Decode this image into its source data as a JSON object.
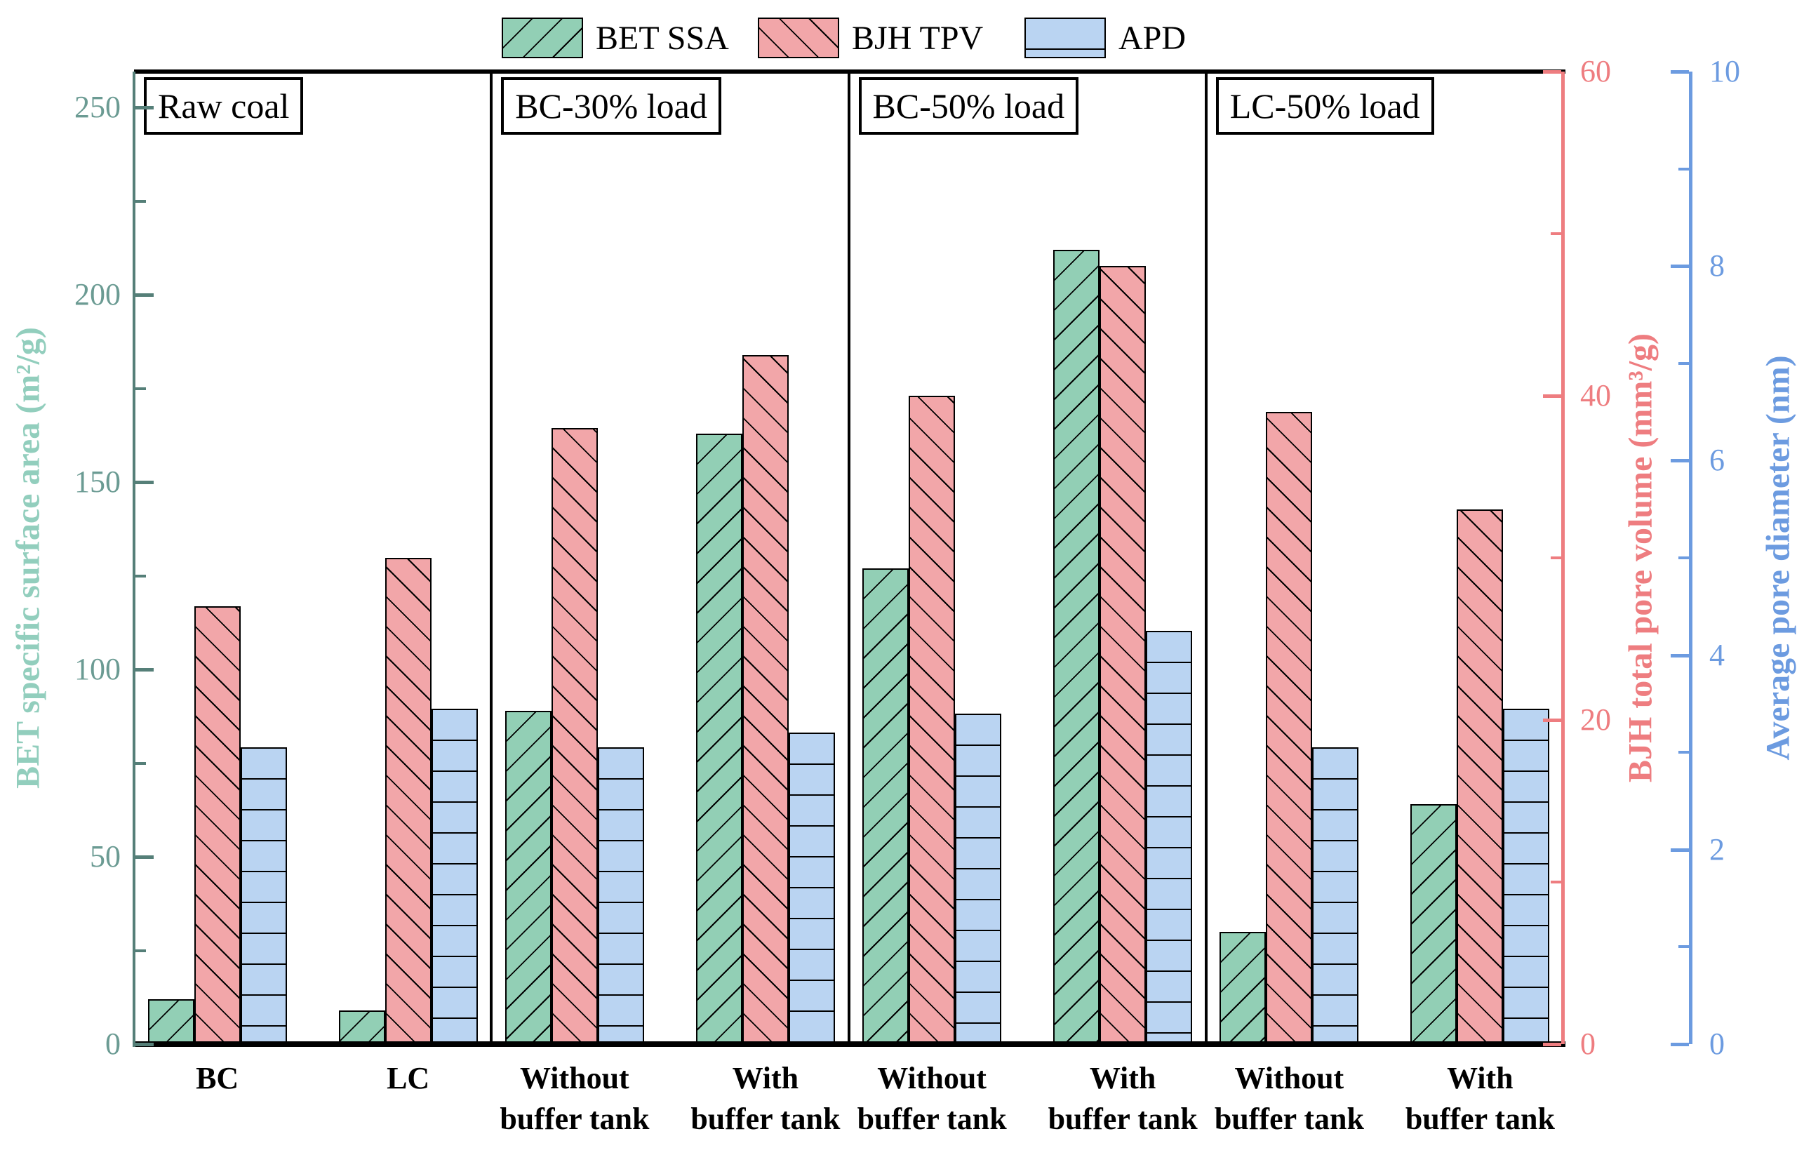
{
  "chart_data": {
    "type": "bar",
    "title": "",
    "legend_position": "top",
    "grid": false,
    "panels": [
      {
        "header": "Raw coal",
        "groups": [
          {
            "label_line1": "BC",
            "label_line2": "",
            "values": {
              "bet_ssa": 12,
              "bjh_tpv": 27,
              "apd": 3.05
            }
          },
          {
            "label_line1": "LC",
            "label_line2": "",
            "values": {
              "bet_ssa": 9,
              "bjh_tpv": 30,
              "apd": 3.45
            }
          }
        ]
      },
      {
        "header": "BC-30% load",
        "groups": [
          {
            "label_line1": "Without",
            "label_line2": "buffer tank",
            "values": {
              "bet_ssa": 89,
              "bjh_tpv": 38,
              "apd": 3.05
            }
          },
          {
            "label_line1": "With",
            "label_line2": "buffer tank",
            "values": {
              "bet_ssa": 163,
              "bjh_tpv": 42.5,
              "apd": 3.2
            }
          }
        ]
      },
      {
        "header": "BC-50% load",
        "groups": [
          {
            "label_line1": "Without",
            "label_line2": "buffer tank",
            "values": {
              "bet_ssa": 127,
              "bjh_tpv": 40,
              "apd": 3.4
            }
          },
          {
            "label_line1": "With",
            "label_line2": "buffer tank",
            "values": {
              "bet_ssa": 212,
              "bjh_tpv": 48,
              "apd": 4.25
            }
          }
        ]
      },
      {
        "header": "LC-50% load",
        "groups": [
          {
            "label_line1": "Without",
            "label_line2": "buffer tank",
            "values": {
              "bet_ssa": 30,
              "bjh_tpv": 39,
              "apd": 3.05
            }
          },
          {
            "label_line1": "With",
            "label_line2": "buffer tank",
            "values": {
              "bet_ssa": 64,
              "bjh_tpv": 33,
              "apd": 3.45
            }
          }
        ]
      }
    ],
    "series": [
      {
        "name": "BET SSA",
        "key": "bet_ssa",
        "axis": "left",
        "fill": "#92CFB5",
        "hatch": "diagonal-up"
      },
      {
        "name": "BJH TPV",
        "key": "bjh_tpv",
        "axis": "right_red",
        "fill": "#F2A6A9",
        "hatch": "diagonal-down"
      },
      {
        "name": "APD",
        "key": "apd",
        "axis": "right_blue",
        "fill": "#BAD4F2",
        "hatch": "horizontal"
      }
    ],
    "axes": {
      "left": {
        "title": "BET specific surface area (m²/g)",
        "ticks": [
          0,
          50,
          100,
          150,
          200,
          250
        ],
        "minor_step": 25,
        "range": [
          0,
          259.5
        ],
        "line_color": "#557F78",
        "tick_label_color": "#6B9B93",
        "title_color": "#92CEBD"
      },
      "right_red": {
        "title": "BJH total pore volume (mm³/g)",
        "ticks": [
          0,
          20,
          40,
          60
        ],
        "minor_step": 10,
        "range": [
          0,
          60
        ],
        "line_color": "#EE7D80",
        "tick_label_color": "#EE7D80",
        "title_color": "#EE7D80"
      },
      "right_blue": {
        "title": "Average pore diameter (nm)",
        "ticks": [
          0,
          2,
          4,
          6,
          8,
          10
        ],
        "minor_step": 1,
        "range": [
          0,
          10
        ],
        "line_color": "#6C9BE0",
        "tick_label_color": "#6C9BE0",
        "title_color": "#6C9BE0"
      }
    }
  }
}
